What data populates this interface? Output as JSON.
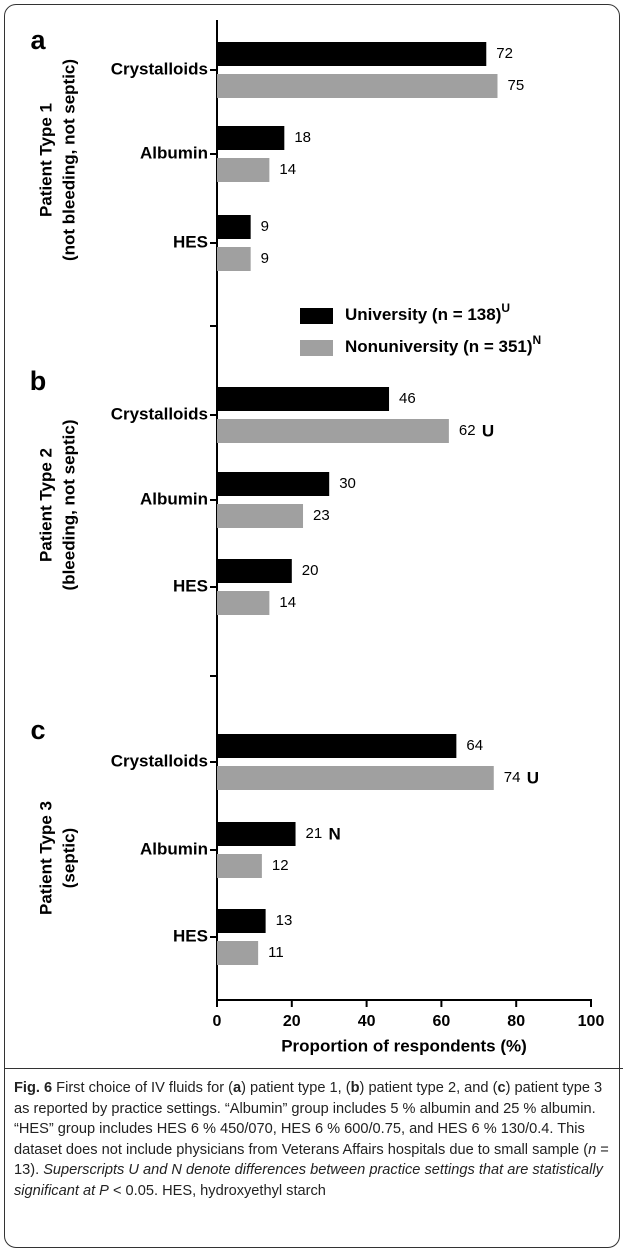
{
  "chart_data": {
    "type": "bar",
    "orientation": "horizontal",
    "series": [
      {
        "name": "University (n = 138)",
        "superscript": "U",
        "color": "#000000"
      },
      {
        "name": "Nonuniversity (n = 351)",
        "superscript": "N",
        "color": "#a0a0a0"
      }
    ],
    "panels": [
      {
        "label": "a",
        "ylabel": [
          "Patient Type 1",
          "(not bleeding, not septic)"
        ],
        "categories": [
          "Crystalloids",
          "Albumin",
          "HES"
        ],
        "values": [
          [
            72,
            18,
            9
          ],
          [
            75,
            14,
            9
          ]
        ],
        "significance": [
          [
            null,
            null,
            null
          ],
          [
            null,
            null,
            null
          ]
        ]
      },
      {
        "label": "b",
        "ylabel": [
          "Patient Type 2",
          "(bleeding, not septic)"
        ],
        "categories": [
          "Crystalloids",
          "Albumin",
          "HES"
        ],
        "values": [
          [
            46,
            30,
            20
          ],
          [
            62,
            23,
            14
          ]
        ],
        "significance": [
          [
            null,
            null,
            null
          ],
          [
            "U",
            null,
            null
          ]
        ]
      },
      {
        "label": "c",
        "ylabel": [
          "Patient Type 3",
          "(septic)"
        ],
        "categories": [
          "Crystalloids",
          "Albumin",
          "HES"
        ],
        "values": [
          [
            64,
            21,
            13
          ],
          [
            74,
            12,
            11
          ]
        ],
        "significance": [
          [
            null,
            "N",
            null
          ],
          [
            "U",
            null,
            null
          ]
        ]
      }
    ],
    "xlabel": "Proportion of respondents (%)",
    "xlim": [
      0,
      100
    ],
    "xticks": [
      0,
      20,
      40,
      60,
      80,
      100
    ],
    "caption": [
      {
        "text": "Fig. 6",
        "style": "bold"
      },
      {
        "text": " First choice of IV fluids for ("
      },
      {
        "text": "a",
        "style": "bold"
      },
      {
        "text": ") patient type 1, ("
      },
      {
        "text": "b",
        "style": "bold"
      },
      {
        "text": ") patient type 2, and ("
      },
      {
        "text": "c",
        "style": "bold"
      },
      {
        "text": ") patient type 3 as reported by practice settings. “Albumin” group includes 5 % albumin and 25 % albumin. “HES” group includes HES 6 % 450/070, HES 6 % 600/0.75, and HES 6 % 130/0.4. This dataset does not include physicians from Veterans Affairs hospitals due to small sample ("
      },
      {
        "text": "n",
        "style": "italic"
      },
      {
        "text": " = 13). "
      },
      {
        "text": "Superscripts U and N denote differences between practice settings that are statistically significant at P",
        "style": "italic"
      },
      {
        "text": " < 0.05. HES, hydroxyethyl starch"
      }
    ]
  }
}
